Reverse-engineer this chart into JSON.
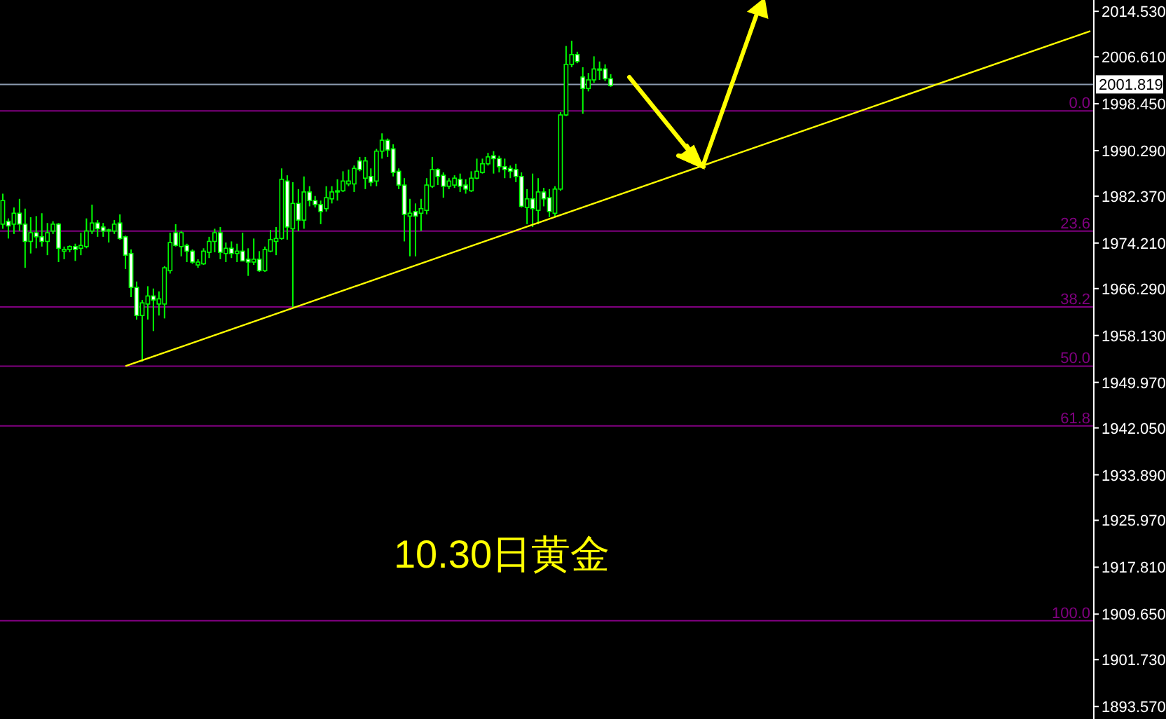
{
  "chart_data": {
    "type": "candlestick",
    "categories": [
      null,
      null,
      null,
      null,
      null,
      null,
      null,
      null,
      null,
      null,
      null,
      null,
      null,
      null,
      null,
      null,
      null,
      null,
      null,
      null,
      null,
      null,
      null,
      null,
      null,
      null,
      null,
      null,
      null,
      null,
      null,
      null,
      null,
      null,
      null,
      null,
      null,
      null,
      null,
      null,
      null,
      null,
      null,
      null,
      null,
      null,
      null,
      null,
      null,
      null,
      null,
      null,
      null,
      null,
      null,
      null,
      null,
      null,
      null,
      null,
      null,
      null,
      null,
      null,
      null,
      null,
      null,
      null,
      null,
      null,
      null,
      null,
      null,
      null,
      null,
      null,
      null,
      null,
      null,
      null,
      null,
      null,
      null,
      null,
      null,
      null,
      null,
      null,
      null,
      null,
      null,
      null,
      null,
      null,
      null,
      null,
      null,
      null,
      null,
      null,
      null,
      null,
      null,
      null,
      null,
      null,
      null,
      null,
      null,
      null,
      null,
      null,
      null,
      null,
      null,
      null,
      null,
      null,
      null,
      null,
      null,
      null,
      null,
      null,
      null,
      null,
      null,
      null,
      null,
      null,
      null,
      null,
      null,
      null,
      null,
      null,
      null,
      null,
      null,
      null,
      null,
      null,
      null,
      null,
      null,
      null,
      null,
      null,
      null,
      null,
      null,
      null,
      null,
      null,
      null,
      null,
      null,
      null,
      null,
      null,
      null,
      null,
      null,
      null,
      null,
      null,
      null,
      null,
      null,
      null,
      null,
      null,
      null,
      null,
      null,
      null,
      null,
      null,
      null,
      null,
      null,
      null,
      null,
      null,
      null,
      null,
      null,
      null,
      null,
      null,
      null,
      null,
      null,
      null,
      null,
      null
    ],
    "ohlc": [
      [
        1977.5,
        1982.8,
        1976.7,
        1981.6
      ],
      [
        1978.0,
        1978.5,
        1975.0,
        1977.2
      ],
      [
        1977.5,
        1980.4,
        1975.8,
        1979.4
      ],
      [
        1979.4,
        1981.9,
        1976.3,
        1977.5
      ],
      [
        1977.5,
        1980.2,
        1969.9,
        1974.5
      ],
      [
        1974.5,
        1978.7,
        1972.4,
        1976.0
      ],
      [
        1976.0,
        1978.9,
        1973.3,
        1975.3
      ],
      [
        1975.3,
        1979.4,
        1973.6,
        1974.5
      ],
      [
        1974.5,
        1977.7,
        1972.1,
        1976.0
      ],
      [
        1976.3,
        1978.0,
        1975.8,
        1977.5
      ],
      [
        1977.5,
        1977.7,
        1970.9,
        1973.3
      ],
      [
        1972.8,
        1973.6,
        1971.4,
        1973.1
      ],
      [
        1973.1,
        1973.8,
        1972.6,
        1973.6
      ],
      [
        1973.6,
        1974.1,
        1971.1,
        1973.1
      ],
      [
        1973.3,
        1976.0,
        1972.1,
        1973.8
      ],
      [
        1973.6,
        1978.5,
        1973.3,
        1976.3
      ],
      [
        1976.3,
        1980.9,
        1975.8,
        1977.7
      ],
      [
        1977.7,
        1978.2,
        1975.3,
        1976.7
      ],
      [
        1977.0,
        1977.7,
        1975.3,
        1976.3
      ],
      [
        1976.3,
        1976.7,
        1974.3,
        1976.5
      ],
      [
        1976.3,
        1978.2,
        1975.8,
        1977.5
      ],
      [
        1977.7,
        1979.2,
        1974.8,
        1975.0
      ],
      [
        1975.3,
        1975.5,
        1969.7,
        1972.1
      ],
      [
        1972.4,
        1973.1,
        1964.8,
        1966.5
      ],
      [
        1966.5,
        1967.5,
        1960.9,
        1961.6
      ],
      [
        1961.6,
        1964.3,
        1953.6,
        1963.8
      ],
      [
        1963.6,
        1966.7,
        1960.9,
        1965.0
      ],
      [
        1965.0,
        1966.3,
        1958.9,
        1964.3
      ],
      [
        1963.6,
        1965.8,
        1961.6,
        1964.5
      ],
      [
        1963.6,
        1970.2,
        1961.1,
        1969.9
      ],
      [
        1969.4,
        1976.0,
        1968.9,
        1974.3
      ],
      [
        1976.0,
        1977.5,
        1973.6,
        1973.8
      ],
      [
        1973.6,
        1976.3,
        1971.9,
        1976.0
      ],
      [
        1973.8,
        1974.1,
        1970.9,
        1972.8
      ],
      [
        1972.8,
        1973.1,
        1970.6,
        1970.9
      ],
      [
        1970.4,
        1971.4,
        1969.9,
        1970.9
      ],
      [
        1970.6,
        1973.3,
        1970.4,
        1972.8
      ],
      [
        1972.6,
        1975.3,
        1971.6,
        1974.5
      ],
      [
        1974.5,
        1976.7,
        1972.6,
        1976.0
      ],
      [
        1976.0,
        1977.0,
        1971.4,
        1972.6
      ],
      [
        1972.4,
        1974.3,
        1970.9,
        1973.3
      ],
      [
        1973.3,
        1974.5,
        1971.6,
        1972.4
      ],
      [
        1972.4,
        1974.1,
        1970.9,
        1972.8
      ],
      [
        1972.8,
        1976.0,
        1971.1,
        1971.1
      ],
      [
        1971.4,
        1973.3,
        1968.5,
        1970.9
      ],
      [
        1970.9,
        1975.0,
        1970.4,
        1971.4
      ],
      [
        1971.4,
        1972.8,
        1969.2,
        1969.4
      ],
      [
        1969.4,
        1973.6,
        1969.2,
        1973.1
      ],
      [
        1972.8,
        1976.5,
        1972.6,
        1974.8
      ],
      [
        1974.5,
        1977.0,
        1972.1,
        1975.0
      ],
      [
        1975.0,
        1987.2,
        1974.8,
        1985.3
      ],
      [
        1985.0,
        1986.0,
        1974.8,
        1977.0
      ],
      [
        1976.7,
        1984.8,
        1963.1,
        1981.1
      ],
      [
        1981.1,
        1983.6,
        1976.3,
        1978.2
      ],
      [
        1978.2,
        1985.8,
        1976.7,
        1983.1
      ],
      [
        1983.1,
        1984.1,
        1980.6,
        1981.6
      ],
      [
        1981.6,
        1982.4,
        1980.4,
        1980.9
      ],
      [
        1980.9,
        1981.6,
        1977.5,
        1979.7
      ],
      [
        1980.2,
        1984.1,
        1979.7,
        1982.1
      ],
      [
        1981.9,
        1984.1,
        1981.1,
        1983.1
      ],
      [
        1983.1,
        1985.3,
        1981.6,
        1983.3
      ],
      [
        1983.3,
        1986.7,
        1983.1,
        1985.0
      ],
      [
        1984.5,
        1987.0,
        1984.1,
        1985.0
      ],
      [
        1984.5,
        1987.7,
        1983.1,
        1987.2
      ],
      [
        1988.5,
        1989.2,
        1986.7,
        1987.0
      ],
      [
        1985.5,
        1989.2,
        1983.6,
        1988.5
      ],
      [
        1985.8,
        1987.2,
        1984.1,
        1984.8
      ],
      [
        1985.0,
        1990.6,
        1984.1,
        1990.2
      ],
      [
        1990.2,
        1993.3,
        1988.9,
        1992.1
      ],
      [
        1992.1,
        1992.4,
        1989.2,
        1990.4
      ],
      [
        1990.6,
        1991.4,
        1985.8,
        1986.5
      ],
      [
        1986.7,
        1987.2,
        1983.6,
        1984.3
      ],
      [
        1984.3,
        1985.5,
        1974.5,
        1979.2
      ],
      [
        1978.9,
        1981.9,
        1971.9,
        1979.4
      ],
      [
        1979.7,
        1981.1,
        1971.9,
        1978.9
      ],
      [
        1979.4,
        1981.9,
        1976.3,
        1980.2
      ],
      [
        1979.9,
        1985.5,
        1979.2,
        1984.3
      ],
      [
        1984.1,
        1989.2,
        1983.8,
        1987.0
      ],
      [
        1987.0,
        1987.2,
        1984.3,
        1985.8
      ],
      [
        1986.0,
        1986.5,
        1982.1,
        1984.1
      ],
      [
        1984.1,
        1985.5,
        1983.6,
        1985.0
      ],
      [
        1984.3,
        1986.0,
        1983.8,
        1985.5
      ],
      [
        1985.3,
        1986.3,
        1983.1,
        1984.1
      ],
      [
        1984.3,
        1985.3,
        1982.8,
        1983.6
      ],
      [
        1983.3,
        1986.7,
        1983.1,
        1985.5
      ],
      [
        1985.5,
        1988.9,
        1985.3,
        1986.7
      ],
      [
        1986.5,
        1988.9,
        1986.3,
        1988.0
      ],
      [
        1988.0,
        1989.9,
        1987.7,
        1989.2
      ],
      [
        1989.4,
        1990.2,
        1986.3,
        1988.9
      ],
      [
        1988.9,
        1989.4,
        1986.5,
        1987.5
      ],
      [
        1987.5,
        1988.9,
        1985.5,
        1987.0
      ],
      [
        1987.2,
        1987.7,
        1985.5,
        1986.7
      ],
      [
        1987.0,
        1988.0,
        1984.8,
        1985.8
      ],
      [
        1985.8,
        1986.5,
        1980.4,
        1980.6
      ],
      [
        1980.4,
        1983.6,
        1977.5,
        1981.9
      ],
      [
        1981.9,
        1986.3,
        1977.0,
        1980.2
      ],
      [
        1979.9,
        1985.5,
        1977.5,
        1983.1
      ],
      [
        1983.1,
        1983.8,
        1980.6,
        1981.9
      ],
      [
        1982.1,
        1983.6,
        1978.7,
        1979.7
      ],
      [
        1979.4,
        1984.1,
        1978.7,
        1983.6
      ],
      [
        1983.6,
        1997.0,
        1983.3,
        1996.5
      ],
      [
        1996.5,
        2008.5,
        1996.3,
        2005.3
      ],
      [
        2005.3,
        2009.4,
        2004.8,
        2007.0
      ],
      [
        2007.0,
        2007.5,
        2005.5,
        2005.8
      ],
      [
        2003.1,
        2004.8,
        1996.7,
        2001.1
      ],
      [
        2001.1,
        2003.8,
        2000.6,
        2002.6
      ],
      [
        2002.6,
        2006.7,
        2002.1,
        2004.5
      ],
      [
        2004.5,
        2005.8,
        2002.6,
        2004.3
      ],
      [
        2004.5,
        2005.3,
        2002.4,
        2002.8
      ],
      [
        2002.8,
        2003.6,
        2001.4,
        2001.6
      ],
      null,
      null,
      null,
      null,
      null,
      null,
      null,
      null,
      null,
      null,
      null,
      null,
      null,
      null,
      null,
      null,
      null,
      null,
      null,
      null,
      null,
      null,
      null,
      null,
      null,
      null,
      null,
      null,
      null,
      null,
      null,
      null,
      null,
      null,
      null,
      null,
      null,
      null,
      null,
      null,
      null,
      null,
      null,
      null,
      null,
      null,
      null,
      null,
      null,
      null,
      null,
      null,
      null,
      null,
      null,
      null,
      null,
      null,
      null,
      null,
      null,
      null,
      null,
      null,
      null,
      null,
      null,
      null,
      null,
      null,
      null,
      null,
      null,
      null,
      null,
      null,
      null,
      null,
      null,
      null,
      null,
      null,
      null,
      null,
      null,
      null
    ],
    "series": [
      {
        "type": "line",
        "values": [
          null,
          null,
          null,
          null,
          null,
          null,
          null,
          null,
          null,
          null,
          null,
          null,
          null,
          null,
          null,
          null,
          null,
          null,
          null,
          null,
          null,
          null,
          1952.8,
          null,
          null,
          null,
          null,
          null,
          null,
          null,
          null,
          null,
          null,
          null,
          null,
          null,
          null,
          null,
          null,
          null,
          null,
          null,
          null,
          null,
          null,
          null,
          null,
          null,
          null,
          null,
          null,
          null,
          null,
          null,
          null,
          null,
          null,
          null,
          null,
          null,
          null,
          null,
          null,
          null,
          null,
          null,
          null,
          null,
          null,
          null,
          null,
          null,
          null,
          null,
          null,
          null,
          null,
          null,
          null,
          null,
          null,
          null,
          null,
          null,
          null,
          null,
          null,
          null,
          null,
          null,
          null,
          null,
          null,
          null,
          null,
          null,
          null,
          null,
          null,
          null,
          null,
          null,
          null,
          null,
          null,
          null,
          null,
          null,
          null,
          null,
          null,
          null,
          null,
          null,
          null,
          null,
          null,
          null,
          null,
          null,
          null,
          null,
          null,
          null,
          null,
          null,
          null,
          null,
          null,
          null,
          null,
          null,
          null,
          null,
          null,
          null,
          null,
          null,
          null,
          null,
          null,
          null,
          null,
          null,
          null,
          null,
          null,
          null,
          null,
          null,
          null,
          null,
          null,
          null,
          null,
          null,
          null,
          null,
          null,
          null,
          null,
          null,
          null,
          null,
          null,
          null,
          null,
          null,
          null,
          null,
          null,
          null,
          null,
          null,
          null,
          null,
          null,
          null,
          null,
          null,
          null,
          null,
          null,
          null,
          null,
          null,
          null,
          null,
          null,
          null,
          null,
          null,
          null,
          null,
          null,
          2011.1
        ],
        "color": "#ffff00"
      }
    ],
    "ylim": [
      1891.4,
      2016.5
    ],
    "yticks": [
      {
        "value": 2014.53,
        "label": "2014.530"
      },
      {
        "value": 2006.61,
        "label": "2006.610"
      },
      {
        "value": 1998.45,
        "label": "1998.450"
      },
      {
        "value": 1990.29,
        "label": "1990.290"
      },
      {
        "value": 1982.37,
        "label": "1982.370"
      },
      {
        "value": 1974.21,
        "label": "1974.210"
      },
      {
        "value": 1966.29,
        "label": "1966.290"
      },
      {
        "value": 1958.13,
        "label": "1958.130"
      },
      {
        "value": 1949.97,
        "label": "1949.970"
      },
      {
        "value": 1942.05,
        "label": "1942.050"
      },
      {
        "value": 1933.89,
        "label": "1933.890"
      },
      {
        "value": 1925.97,
        "label": "1925.970"
      },
      {
        "value": 1917.81,
        "label": "1917.810"
      },
      {
        "value": 1909.65,
        "label": "1909.650"
      },
      {
        "value": 1901.73,
        "label": "1901.730"
      },
      {
        "value": 1893.57,
        "label": "1893.570"
      }
    ],
    "tick_labels": "y",
    "ref_lines": [
      {
        "axis": "y",
        "value": 2001.819,
        "label": "2001.819",
        "color": "#8c9bb0"
      },
      {
        "axis": "y",
        "value": 1997.2,
        "color": "#800080"
      },
      {
        "axis": "y",
        "value": 1976.3,
        "color": "#800080"
      },
      {
        "axis": "y",
        "value": 1963.1,
        "color": "#800080"
      },
      {
        "axis": "y",
        "value": 1952.8,
        "color": "#800080"
      },
      {
        "axis": "y",
        "value": 1942.4,
        "color": "#800080"
      },
      {
        "axis": "y",
        "value": 1908.5,
        "color": "#800080"
      }
    ],
    "annotations": [
      "10.30日黄金",
      {
        "text": "0.0",
        "y": 1997.2
      },
      {
        "text": "23.6",
        "y": 1976.3
      },
      {
        "text": "38.2",
        "y": 1963.1
      },
      {
        "text": "50.0",
        "y": 1952.8
      },
      {
        "text": "61.8",
        "y": 1942.4
      },
      {
        "text": "100.0",
        "y": 1908.5
      }
    ]
  }
}
